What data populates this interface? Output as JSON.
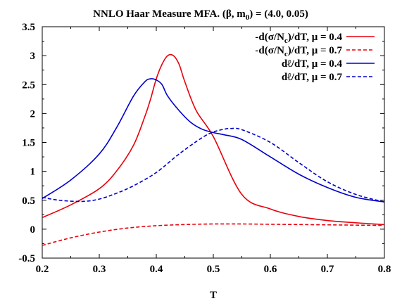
{
  "chart_data": {
    "type": "line",
    "title": "NNLO Haar Measure MFA. (β, m0) = (4.0, 0.05)",
    "xlabel": "T",
    "ylabel": "",
    "xlim": [
      0.2,
      0.8
    ],
    "ylim": [
      -0.5,
      3.5
    ],
    "xticks": [
      "0.2",
      "0.3",
      "0.4",
      "0.5",
      "0.6",
      "0.7",
      "0.8"
    ],
    "yticks": [
      "-0.5",
      "0",
      "0.5",
      "1",
      "1.5",
      "2",
      "2.5",
      "3",
      "3.5"
    ],
    "grid": false,
    "legend_position": "top-right",
    "series": [
      {
        "name": "-d(σ/Nc)/dT, μ = 0.4",
        "color": "#e8000b",
        "dash": "solid",
        "x": [
          0.2,
          0.25,
          0.3,
          0.33,
          0.36,
          0.38,
          0.39,
          0.4,
          0.41,
          0.42,
          0.43,
          0.44,
          0.45,
          0.47,
          0.5,
          0.55,
          0.6,
          0.65,
          0.7,
          0.75,
          0.8
        ],
        "y": [
          0.2,
          0.42,
          0.7,
          1.0,
          1.45,
          1.95,
          2.25,
          2.6,
          2.85,
          3.0,
          3.0,
          2.85,
          2.55,
          2.05,
          1.6,
          0.6,
          0.35,
          0.22,
          0.15,
          0.11,
          0.08
        ]
      },
      {
        "name": "-d(σ/Nc)/dT, μ = 0.7",
        "color": "#e8000b",
        "dash": "dashed",
        "x": [
          0.2,
          0.25,
          0.3,
          0.35,
          0.4,
          0.45,
          0.5,
          0.55,
          0.6,
          0.65,
          0.7,
          0.75,
          0.8
        ],
        "y": [
          -0.28,
          -0.15,
          -0.05,
          0.02,
          0.06,
          0.08,
          0.09,
          0.09,
          0.085,
          0.08,
          0.075,
          0.07,
          0.065
        ]
      },
      {
        "name": "dℓ/dT, μ = 0.4",
        "color": "#0000cc",
        "dash": "solid",
        "x": [
          0.2,
          0.25,
          0.3,
          0.33,
          0.36,
          0.38,
          0.39,
          0.4,
          0.41,
          0.42,
          0.44,
          0.46,
          0.48,
          0.5,
          0.52,
          0.55,
          0.6,
          0.65,
          0.7,
          0.75,
          0.8
        ],
        "y": [
          0.53,
          0.85,
          1.3,
          1.75,
          2.3,
          2.55,
          2.6,
          2.58,
          2.5,
          2.3,
          2.05,
          1.85,
          1.73,
          1.67,
          1.63,
          1.55,
          1.25,
          0.95,
          0.72,
          0.55,
          0.47
        ]
      },
      {
        "name": "dℓ/dT, μ = 0.7",
        "color": "#0000cc",
        "dash": "dashed",
        "x": [
          0.2,
          0.23,
          0.27,
          0.3,
          0.33,
          0.36,
          0.4,
          0.44,
          0.48,
          0.5,
          0.52,
          0.53,
          0.55,
          0.6,
          0.65,
          0.7,
          0.75,
          0.8
        ],
        "y": [
          0.55,
          0.5,
          0.48,
          0.52,
          0.62,
          0.75,
          0.98,
          1.3,
          1.58,
          1.68,
          1.73,
          1.74,
          1.72,
          1.5,
          1.15,
          0.82,
          0.6,
          0.47
        ]
      }
    ]
  }
}
